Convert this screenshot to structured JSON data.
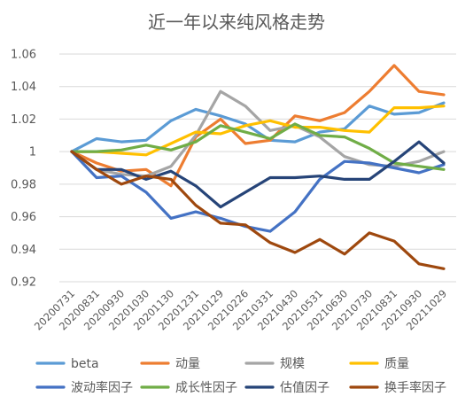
{
  "chart_data": {
    "type": "line",
    "title": "近一年以来纯风格走势",
    "categories": [
      "20200731",
      "20200831",
      "20200930",
      "20201030",
      "20201130",
      "20201231",
      "20210129",
      "20210226",
      "20210331",
      "20210430",
      "20210531",
      "20210630",
      "20210730",
      "20210831",
      "20210930",
      "20211029"
    ],
    "ylim": [
      0.92,
      1.06
    ],
    "yticks": [
      "0.92",
      "0.94",
      "0.96",
      "0.98",
      "1",
      "1.02",
      "1.04",
      "1.06"
    ],
    "grid": true,
    "legend_position": "bottom",
    "series": [
      {
        "name": "beta",
        "color": "#5b9bd5",
        "values": [
          1.0,
          1.008,
          1.006,
          1.007,
          1.019,
          1.026,
          1.022,
          1.017,
          1.007,
          1.006,
          1.012,
          1.014,
          1.028,
          1.023,
          1.024,
          1.03
        ]
      },
      {
        "name": "动量",
        "color": "#ed7d31",
        "values": [
          1.0,
          0.993,
          0.988,
          0.989,
          0.979,
          1.009,
          1.02,
          1.005,
          1.007,
          1.022,
          1.019,
          1.024,
          1.037,
          1.053,
          1.037,
          1.035
        ]
      },
      {
        "name": "规模",
        "color": "#a5a5a5",
        "values": [
          1.0,
          0.989,
          0.986,
          0.985,
          0.991,
          1.01,
          1.037,
          1.028,
          1.013,
          1.016,
          1.009,
          0.997,
          0.992,
          0.991,
          0.994,
          1.0
        ]
      },
      {
        "name": "质量",
        "color": "#ffc000",
        "values": [
          1.0,
          1.0,
          0.999,
          0.998,
          1.005,
          1.012,
          1.011,
          1.016,
          1.019,
          1.015,
          1.015,
          1.013,
          1.012,
          1.027,
          1.027,
          1.028
        ]
      },
      {
        "name": "波动率因子",
        "color": "#4472c4",
        "values": [
          1.0,
          0.984,
          0.985,
          0.975,
          0.959,
          0.963,
          0.959,
          0.954,
          0.951,
          0.963,
          0.983,
          0.994,
          0.993,
          0.99,
          0.987,
          0.992
        ]
      },
      {
        "name": "成长性因子",
        "color": "#70ad47",
        "values": [
          1.0,
          1.0,
          1.001,
          1.004,
          1.001,
          1.006,
          1.016,
          1.012,
          1.008,
          1.017,
          1.01,
          1.009,
          1.002,
          0.993,
          0.991,
          0.989
        ]
      },
      {
        "name": "估值因子",
        "color": "#264478",
        "values": [
          1.0,
          0.989,
          0.989,
          0.983,
          0.988,
          0.979,
          0.966,
          0.975,
          0.984,
          0.984,
          0.985,
          0.983,
          0.983,
          0.994,
          1.006,
          0.993
        ]
      },
      {
        "name": "换手率因子",
        "color": "#9e480e",
        "values": [
          1.0,
          0.989,
          0.98,
          0.985,
          0.983,
          0.967,
          0.956,
          0.955,
          0.944,
          0.938,
          0.946,
          0.937,
          0.95,
          0.945,
          0.931,
          0.928
        ]
      }
    ]
  }
}
